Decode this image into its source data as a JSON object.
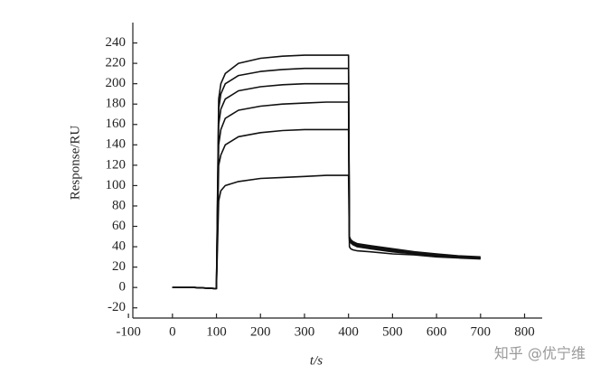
{
  "chart_data": {
    "type": "line",
    "xlabel": "t/s",
    "ylabel": "Response/RU",
    "watermark": "知乎 @优宁维",
    "x": [
      0,
      50,
      95,
      100,
      105,
      110,
      120,
      150,
      200,
      250,
      300,
      350,
      400,
      402,
      405,
      410,
      420,
      450,
      500,
      550,
      600,
      650,
      700
    ],
    "series": [
      {
        "color": "#111111",
        "values": [
          0,
          0,
          -1,
          -1,
          85,
          95,
          100,
          104,
          107,
          108,
          109,
          110,
          110,
          40,
          38,
          37,
          36,
          35,
          33,
          32,
          30,
          29,
          28
        ]
      },
      {
        "color": "#111111",
        "values": [
          0,
          0,
          -1,
          -1,
          120,
          130,
          140,
          148,
          152,
          154,
          155,
          155,
          155,
          46,
          44,
          42,
          40,
          38,
          35,
          33,
          31,
          30,
          29
        ]
      },
      {
        "color": "#111111",
        "values": [
          0,
          0,
          -1,
          -1,
          140,
          155,
          166,
          174,
          178,
          180,
          181,
          182,
          182,
          48,
          45,
          43,
          41,
          39,
          36,
          34,
          32,
          30,
          29
        ]
      },
      {
        "color": "#111111",
        "values": [
          0,
          0,
          -1,
          -1,
          160,
          175,
          185,
          193,
          197,
          199,
          200,
          200,
          200,
          48,
          46,
          44,
          42,
          40,
          37,
          34,
          32,
          30,
          29
        ]
      },
      {
        "color": "#111111",
        "values": [
          0,
          0,
          -1,
          -1,
          175,
          190,
          200,
          208,
          212,
          214,
          215,
          215,
          215,
          49,
          46,
          44,
          42,
          40,
          37,
          34,
          32,
          30,
          29
        ]
      },
      {
        "color": "#111111",
        "values": [
          0,
          0,
          -1,
          -1,
          185,
          200,
          210,
          220,
          225,
          227,
          228,
          228,
          228,
          50,
          47,
          45,
          43,
          41,
          38,
          35,
          33,
          31,
          30
        ]
      }
    ],
    "xlim": [
      -90,
      840
    ],
    "xticks": [
      -100,
      0,
      100,
      200,
      300,
      400,
      500,
      600,
      700,
      800
    ],
    "ylim": [
      -30,
      260
    ],
    "yticks": [
      -20,
      0,
      20,
      40,
      60,
      80,
      100,
      120,
      140,
      160,
      180,
      200,
      220,
      240
    ]
  }
}
